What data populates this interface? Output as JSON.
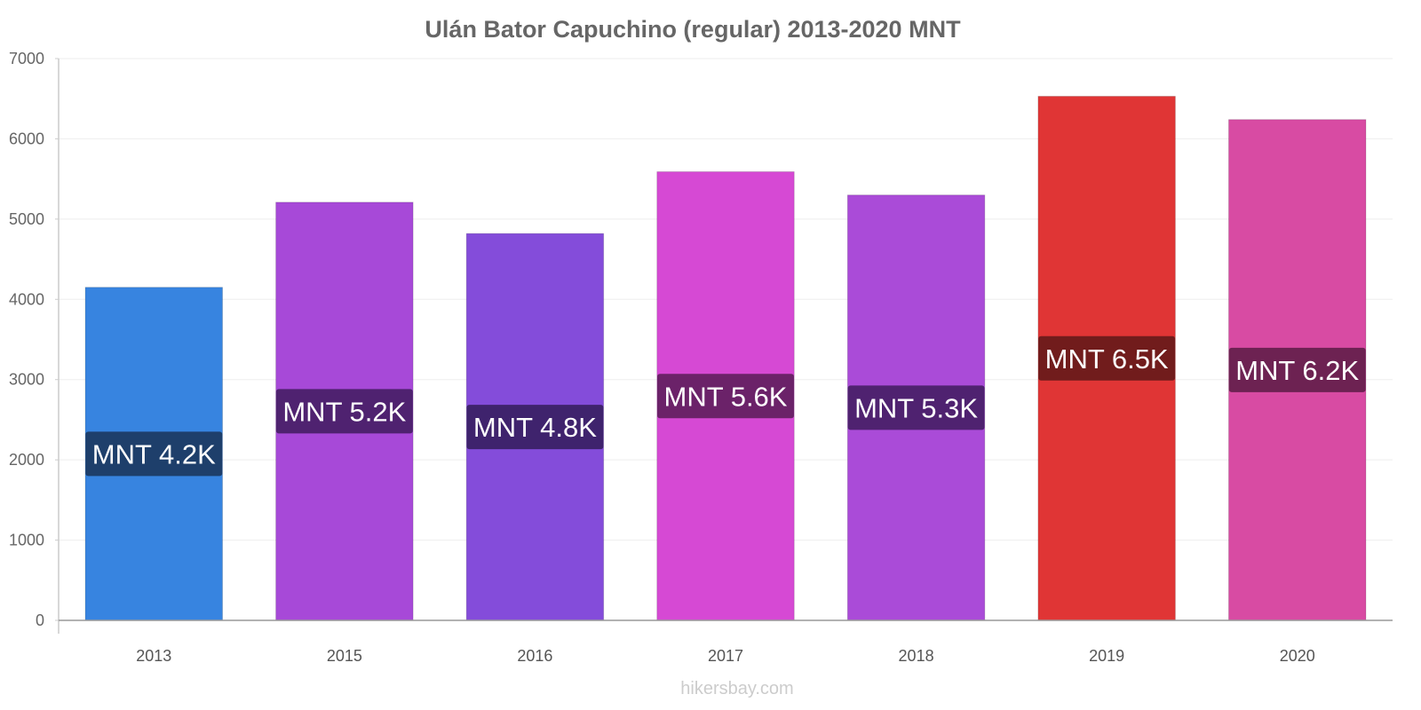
{
  "chart_data": {
    "type": "bar",
    "title": "Ulán Bator Capuchino (regular) 2013-2020 MNT",
    "categories": [
      "2013",
      "2015",
      "2016",
      "2017",
      "2018",
      "2019",
      "2020"
    ],
    "values": [
      4150,
      5210,
      4820,
      5590,
      5300,
      6530,
      6240
    ],
    "data_labels": [
      "MNT 4.2K",
      "MNT 5.2K",
      "MNT 4.8K",
      "MNT 5.6K",
      "MNT 5.3K",
      "MNT 6.5K",
      "MNT 6.2K"
    ],
    "bar_colors": [
      "#3784e0",
      "#a749d8",
      "#844cda",
      "#d649d4",
      "#aa4bd8",
      "#e03535",
      "#d84ba3"
    ],
    "label_colors": [
      "#1e3f6b",
      "#4f2270",
      "#3f236d",
      "#6b2269",
      "#4f2270",
      "#711c1c",
      "#6d2252"
    ],
    "ylim": [
      0,
      7000
    ],
    "yticks": [
      0,
      1000,
      2000,
      3000,
      4000,
      5000,
      6000,
      7000
    ],
    "xlabel": "",
    "ylabel": "",
    "grid": true,
    "legend": "none"
  },
  "watermark": "hikersbay.com"
}
